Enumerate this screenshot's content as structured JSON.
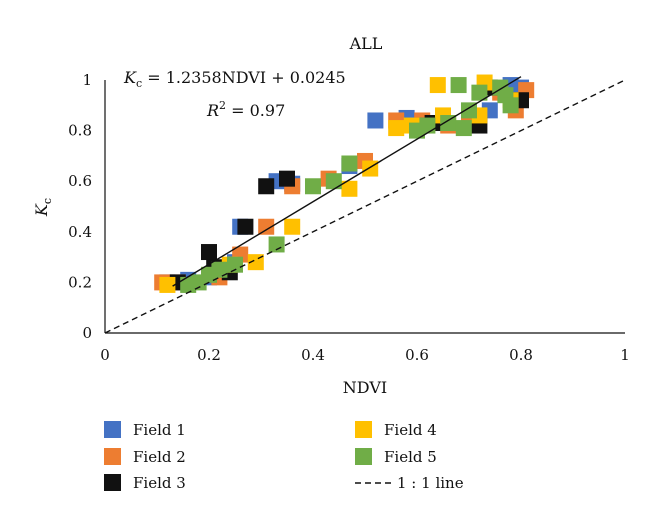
{
  "chart_data": {
    "type": "scatter",
    "title": "ALL",
    "xlabel": "NDVI",
    "ylabel": "K",
    "ylabel_sub": "c",
    "xlim": [
      0,
      1
    ],
    "ylim": [
      0,
      1
    ],
    "xticks": [
      "0",
      "0.2",
      "0.4",
      "0.6",
      "0.8",
      "1"
    ],
    "yticks": [
      "0",
      "0.2",
      "0.4",
      "0.6",
      "0.8",
      "1"
    ],
    "grid": false,
    "legend_position": "bottom",
    "annotation": {
      "equation_lhs": "K",
      "equation_sub": "c",
      "equation_rhs": " = 1.2358NDVI + 0.0245",
      "r2_prefix": "R",
      "r2_sup": "2",
      "r2_rest": " = 0.97"
    },
    "regression": {
      "slope": 1.2358,
      "intercept": 0.0245,
      "x_range": [
        0.13,
        0.8
      ]
    },
    "reference_line": {
      "name": "1 : 1 line",
      "x_range": [
        0,
        1
      ]
    },
    "series": [
      {
        "name": "Field 1",
        "color": "#4472C4",
        "points": [
          [
            0.12,
            0.2
          ],
          [
            0.16,
            0.21
          ],
          [
            0.2,
            0.22
          ],
          [
            0.25,
            0.28
          ],
          [
            0.26,
            0.42
          ],
          [
            0.33,
            0.6
          ],
          [
            0.36,
            0.59
          ],
          [
            0.47,
            0.66
          ],
          [
            0.52,
            0.84
          ],
          [
            0.58,
            0.85
          ],
          [
            0.65,
            0.84
          ],
          [
            0.7,
            0.85
          ],
          [
            0.74,
            0.88
          ],
          [
            0.78,
            0.98
          ],
          [
            0.8,
            0.97
          ]
        ]
      },
      {
        "name": "Field 2",
        "color": "#ED7D31",
        "points": [
          [
            0.11,
            0.2
          ],
          [
            0.14,
            0.2
          ],
          [
            0.22,
            0.22
          ],
          [
            0.26,
            0.31
          ],
          [
            0.31,
            0.42
          ],
          [
            0.36,
            0.58
          ],
          [
            0.43,
            0.61
          ],
          [
            0.5,
            0.68
          ],
          [
            0.56,
            0.84
          ],
          [
            0.61,
            0.84
          ],
          [
            0.66,
            0.82
          ],
          [
            0.7,
            0.83
          ],
          [
            0.76,
            0.95
          ],
          [
            0.79,
            0.88
          ],
          [
            0.81,
            0.96
          ]
        ]
      },
      {
        "name": "Field 3",
        "color": "#111111",
        "points": [
          [
            0.14,
            0.2
          ],
          [
            0.2,
            0.32
          ],
          [
            0.21,
            0.26
          ],
          [
            0.24,
            0.24
          ],
          [
            0.27,
            0.42
          ],
          [
            0.31,
            0.58
          ],
          [
            0.35,
            0.61
          ],
          [
            0.61,
            0.82
          ],
          [
            0.63,
            0.83
          ],
          [
            0.72,
            0.82
          ],
          [
            0.74,
            0.97
          ],
          [
            0.8,
            0.92
          ]
        ]
      },
      {
        "name": "Field 4",
        "color": "#FFC000",
        "points": [
          [
            0.12,
            0.19
          ],
          [
            0.24,
            0.27
          ],
          [
            0.29,
            0.28
          ],
          [
            0.36,
            0.42
          ],
          [
            0.47,
            0.57
          ],
          [
            0.51,
            0.65
          ],
          [
            0.56,
            0.81
          ],
          [
            0.59,
            0.82
          ],
          [
            0.65,
            0.86
          ],
          [
            0.64,
            0.98
          ],
          [
            0.72,
            0.86
          ],
          [
            0.73,
            0.99
          ],
          [
            0.78,
            0.92
          ]
        ]
      },
      {
        "name": "Field 5",
        "color": "#70AD47",
        "points": [
          [
            0.16,
            0.19
          ],
          [
            0.18,
            0.2
          ],
          [
            0.2,
            0.23
          ],
          [
            0.22,
            0.25
          ],
          [
            0.25,
            0.27
          ],
          [
            0.33,
            0.35
          ],
          [
            0.4,
            0.58
          ],
          [
            0.44,
            0.6
          ],
          [
            0.47,
            0.67
          ],
          [
            0.6,
            0.8
          ],
          [
            0.62,
            0.82
          ],
          [
            0.66,
            0.83
          ],
          [
            0.69,
            0.81
          ],
          [
            0.68,
            0.98
          ],
          [
            0.7,
            0.88
          ],
          [
            0.72,
            0.95
          ],
          [
            0.76,
            0.97
          ],
          [
            0.77,
            0.94
          ],
          [
            0.78,
            0.9
          ]
        ]
      }
    ]
  }
}
